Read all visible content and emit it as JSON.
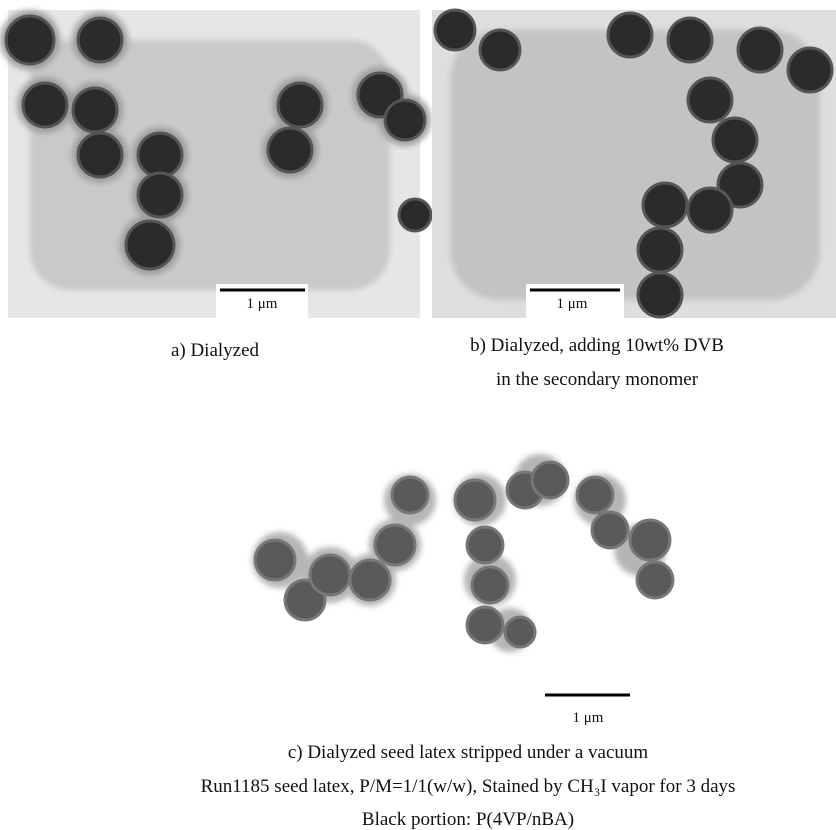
{
  "figure": {
    "panels": [
      {
        "scale_bar": "1 μm",
        "caption": [
          "a) Dialyzed"
        ]
      },
      {
        "scale_bar": "1 μm",
        "caption": [
          "b) Dialyzed, adding 10wt% DVB",
          "in the secondary monomer"
        ]
      },
      {
        "scale_bar": "1 μm",
        "caption": [
          "c) Dialyzed seed latex stripped under a vacuum",
          "Run1185 seed latex, P/M=1/1(w/w), Stained by CH₃I vapor for 3 days",
          "Black portion: P(4VP/nBA)"
        ]
      }
    ]
  }
}
